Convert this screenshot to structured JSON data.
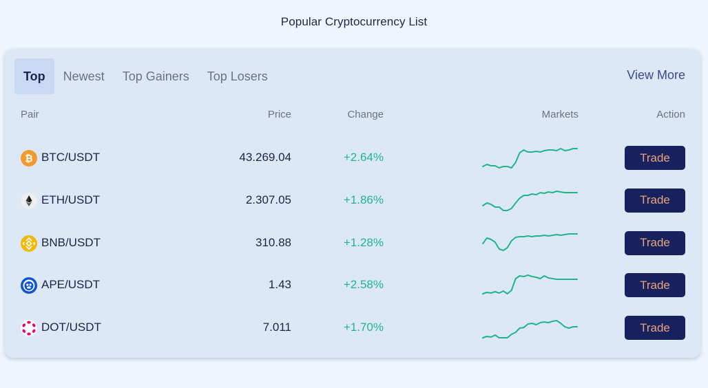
{
  "page": {
    "title": "Popular Cryptocurrency List"
  },
  "tabs": [
    {
      "label": "Top",
      "active": true
    },
    {
      "label": "Newest",
      "active": false
    },
    {
      "label": "Top Gainers",
      "active": false
    },
    {
      "label": "Top Losers",
      "active": false
    }
  ],
  "view_more_label": "View More",
  "columns": {
    "pair": "Pair",
    "price": "Price",
    "change": "Change",
    "markets": "Markets",
    "action": "Action"
  },
  "colors": {
    "accent_green": "#1fb588",
    "button_bg": "#17215e",
    "button_text": "#e8a37d",
    "card_bg": "#dde8f7"
  },
  "rows": [
    {
      "pair": "BTC/USDT",
      "price": "43.269.04",
      "change": "+2.64%",
      "icon": "btc-icon",
      "action_label": "Trade",
      "sparkline": [
        34,
        31,
        33,
        33,
        36,
        34,
        34,
        37,
        28,
        14,
        10,
        13,
        13,
        12,
        13,
        11,
        10,
        10,
        11,
        8,
        11,
        10,
        8,
        8
      ]
    },
    {
      "pair": "ETH/USDT",
      "price": "2.307.05",
      "change": "+1.86%",
      "icon": "eth-icon",
      "action_label": "Trade",
      "sparkline": [
        29,
        25,
        27,
        31,
        31,
        36,
        36,
        33,
        25,
        18,
        14,
        14,
        12,
        13,
        10,
        11,
        9,
        10,
        8,
        9,
        10,
        10,
        10,
        10
      ]
    },
    {
      "pair": "BNB/USDT",
      "price": "310.88",
      "change": "+1.28%",
      "icon": "bnb-icon",
      "action_label": "Trade",
      "sparkline": [
        22,
        14,
        16,
        20,
        30,
        32,
        28,
        18,
        13,
        12,
        12,
        11,
        12,
        11,
        11,
        10,
        11,
        10,
        9,
        10,
        9,
        8,
        8,
        8
      ]
    },
    {
      "pair": "APE/USDT",
      "price": "1.43",
      "change": "+2.58%",
      "icon": "ape-icon",
      "action_label": "Trade",
      "sparkline": [
        34,
        32,
        33,
        31,
        33,
        30,
        34,
        29,
        12,
        8,
        9,
        7,
        9,
        10,
        12,
        8,
        11,
        12,
        13,
        13,
        13,
        13,
        13,
        13
      ]
    },
    {
      "pair": "DOT/USDT",
      "price": "7.011",
      "change": "+1.70%",
      "icon": "dot-icon",
      "action_label": "Trade",
      "sparkline": [
        36,
        34,
        35,
        32,
        36,
        37,
        36,
        31,
        28,
        22,
        21,
        16,
        15,
        17,
        14,
        13,
        14,
        12,
        11,
        15,
        20,
        22,
        20,
        20
      ]
    }
  ]
}
